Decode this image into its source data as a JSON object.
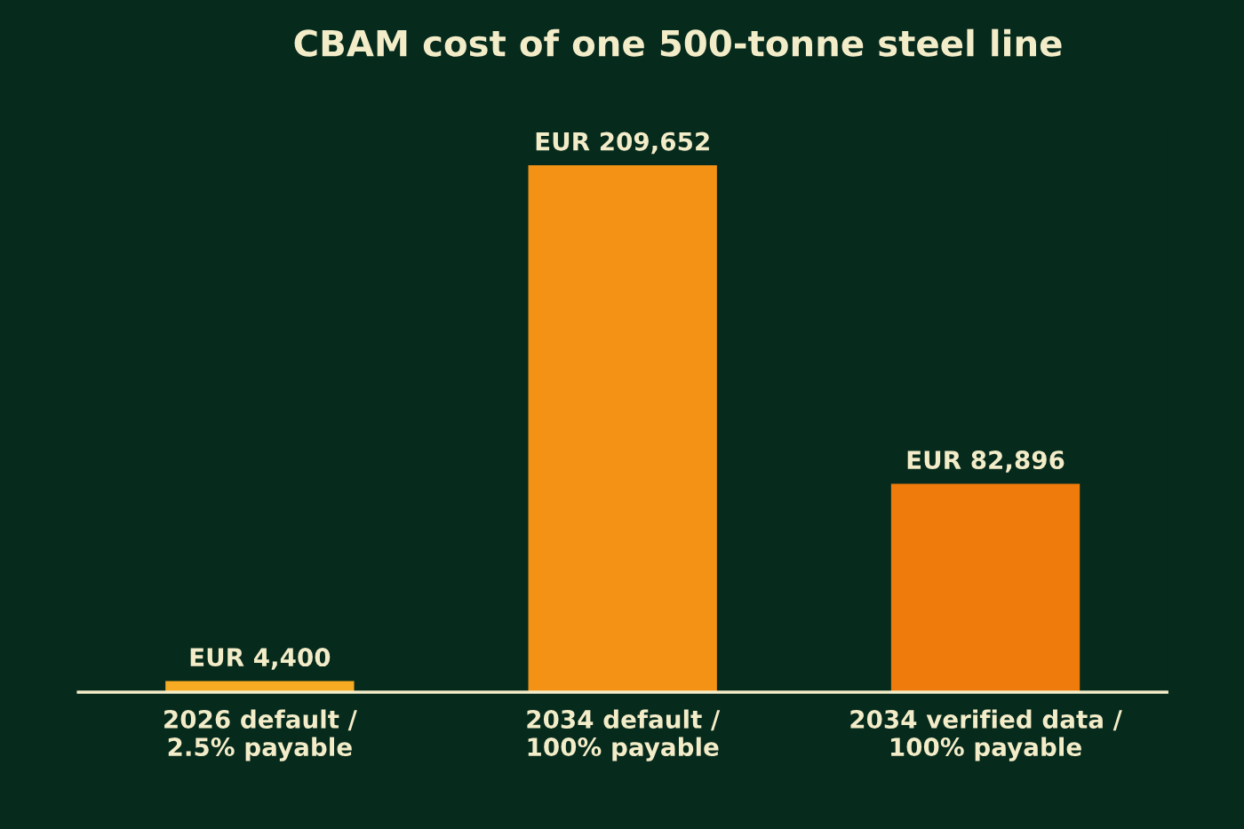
{
  "chart_data": {
    "type": "bar",
    "title": "CBAM cost of one 500-tonne steel line",
    "categories": [
      "2026 default /\n2.5% payable",
      "2034 default /\n100% payable",
      "2034 verified data /\n100% payable"
    ],
    "values": [
      4400,
      209652,
      82896
    ],
    "colors": [
      "#f7ab22",
      "#f49216",
      "#ef7b0c"
    ],
    "value_labels": [
      "EUR 4,400",
      "EUR 209,652",
      "EUR 82,896"
    ],
    "tick_labels": "x",
    "grid": false,
    "legend": false
  }
}
